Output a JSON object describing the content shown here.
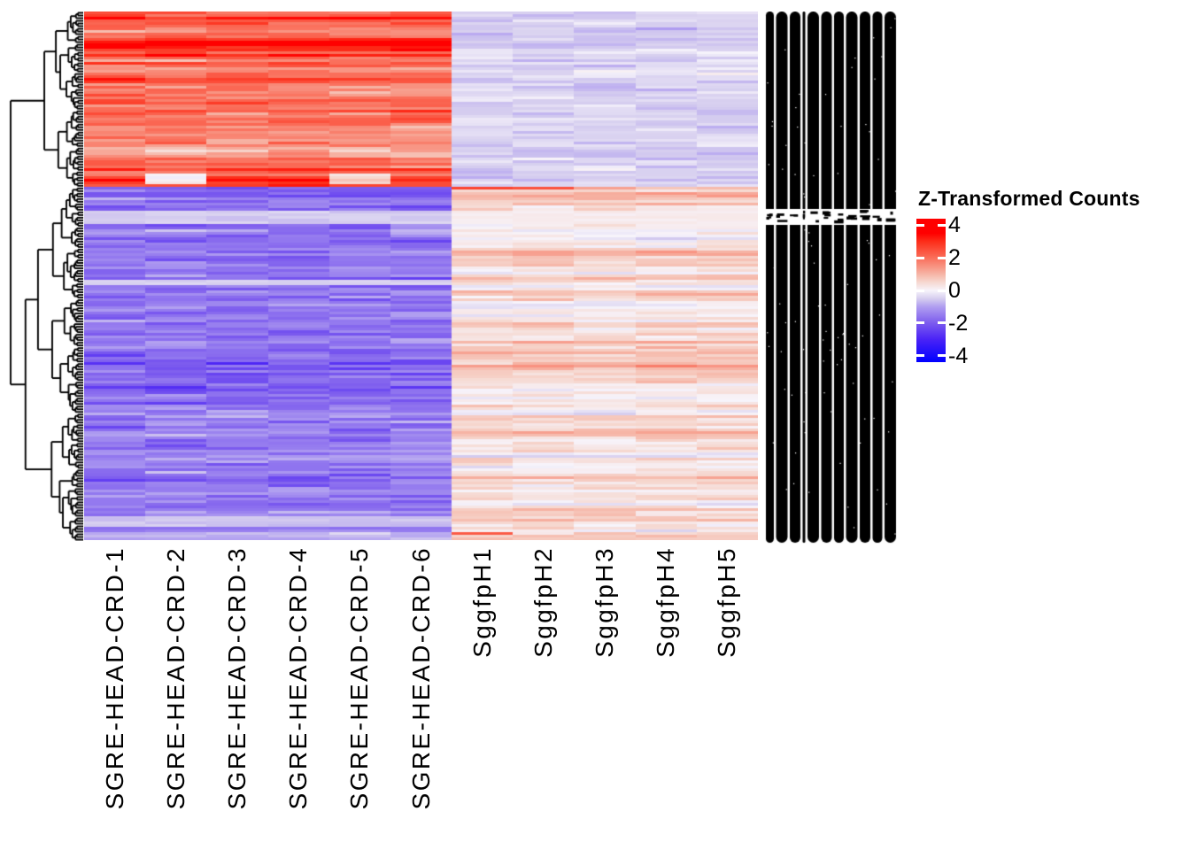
{
  "figure": {
    "kind": "clustered expression heatmap",
    "background": "#ffffff"
  },
  "legend": {
    "title": "Z-Transformed Counts",
    "ticks": [
      {
        "label": "4",
        "value": 4
      },
      {
        "label": "2",
        "value": 2
      },
      {
        "label": "0",
        "value": 0
      },
      {
        "label": "-2",
        "value": -2
      },
      {
        "label": "-4",
        "value": -4
      }
    ],
    "range_max": 4.4,
    "range_min": -4.4,
    "tick_mark_color": "#ffffff"
  },
  "chart_data": {
    "type": "heatmap",
    "title": "",
    "value_label": "Z-Transformed Counts",
    "columns": [
      "SGRE-HEAD-CRD-1",
      "SGRE-HEAD-CRD-2",
      "SGRE-HEAD-CRD-3",
      "SGRE-HEAD-CRD-4",
      "SGRE-HEAD-CRD-5",
      "SGRE-HEAD-CRD-6",
      "SggfpH1",
      "SggfpH2",
      "SggfpH3",
      "SggfpH4",
      "SggfpH5"
    ],
    "column_groups": [
      {
        "name": "SGRE-HEAD-CRD",
        "column_indexes": [
          0,
          1,
          2,
          3,
          4,
          5
        ]
      },
      {
        "name": "SggfpH",
        "column_indexes": [
          6,
          7,
          8,
          9,
          10
        ]
      }
    ],
    "rows_estimate": 600,
    "row_labels_readable": false,
    "row_labels_note": "hundreds of overlapping row labels rendered as a solid black strip",
    "row_clustering": true,
    "column_clustering": false,
    "clusters": [
      {
        "name": "up_in_SGRE_down_in_Sggfp",
        "row_fraction": 0.33,
        "SGRE_mean_z": 2.1,
        "SGRE_sd": 0.75,
        "Sggfp_mean_z": -0.45,
        "Sggfp_sd": 0.15
      },
      {
        "name": "down_in_SGRE_up_in_Sggfp",
        "row_fraction": 0.67,
        "SGRE_mean_z": -1.7,
        "SGRE_sd": 0.45,
        "Sggfp_mean_z": 0.5,
        "Sggfp_sd": 0.5
      }
    ],
    "colormap": {
      "name": "blue-white-red",
      "stops": [
        {
          "value": -4.4,
          "color": "#0000FF"
        },
        {
          "value": -3.0,
          "color": "#4A23F6"
        },
        {
          "value": -2.0,
          "color": "#7C5BEE"
        },
        {
          "value": -1.0,
          "color": "#B09EF0"
        },
        {
          "value": -0.5,
          "color": "#D6CEEF"
        },
        {
          "value": 0.0,
          "color": "#F7F4FB"
        },
        {
          "value": 0.5,
          "color": "#F6D8D0"
        },
        {
          "value": 1.0,
          "color": "#F6B4A5"
        },
        {
          "value": 2.0,
          "color": "#FA6E5A"
        },
        {
          "value": 3.0,
          "color": "#FD2D19"
        },
        {
          "value": 3.5,
          "color": "#FF0000"
        },
        {
          "value": 4.4,
          "color": "#FF0000"
        }
      ]
    },
    "render": {
      "rows": 199,
      "top_cluster_rows": 66,
      "features": [
        {
          "rows": [
            61,
            64
          ],
          "cols": [
            1,
            1
          ],
          "set": 0.15,
          "jitter": 0.3,
          "note": "near-white streaks at bottom of red block, column 2"
        },
        {
          "rows": [
            61,
            64
          ],
          "cols": [
            4,
            4
          ],
          "set": 0.5,
          "jitter": 0.3,
          "note": "pale streaks at bottom of red block, column 5"
        },
        {
          "rows": [
            66,
            66
          ],
          "cols": [
            6,
            7
          ],
          "set": 2.6,
          "jitter": 0.15,
          "note": "bright red streak in SggfpH1-2 at top of lower cluster"
        },
        {
          "rows": [
            66,
            66
          ],
          "cols": [
            8,
            8
          ],
          "set": 1.2,
          "jitter": 0.1,
          "note": "pink streak SggfpH3"
        },
        {
          "rows": [
            75,
            79
          ],
          "cols": [
            0,
            5
          ],
          "set": -0.5,
          "jitter": 0.15,
          "note": "light lavender band across SGRE columns"
        },
        {
          "rows": [
            75,
            79
          ],
          "cols": [
            6,
            10
          ],
          "set": 0.15,
          "jitter": 0.1,
          "note": "pale band across Sggfp columns"
        },
        {
          "rows": [
            101,
            102
          ],
          "cols": [
            0,
            5
          ],
          "set": -0.45,
          "jitter": 0.1,
          "note": "light row across SGRE columns"
        },
        {
          "rows": [
            190,
            193
          ],
          "cols": [
            0,
            5
          ],
          "set": -0.6,
          "jitter": 0.15,
          "note": "light band near bottom"
        },
        {
          "rows": [
            196,
            196
          ],
          "cols": [
            6,
            6
          ],
          "set": 2.3,
          "jitter": 0.1,
          "note": "red streak SggfpH1 near bottom"
        },
        {
          "rows": [
            197,
            198
          ],
          "cols": [
            0,
            5
          ],
          "set": -0.8,
          "jitter": 0.2,
          "note": "pale last rows"
        }
      ]
    }
  }
}
